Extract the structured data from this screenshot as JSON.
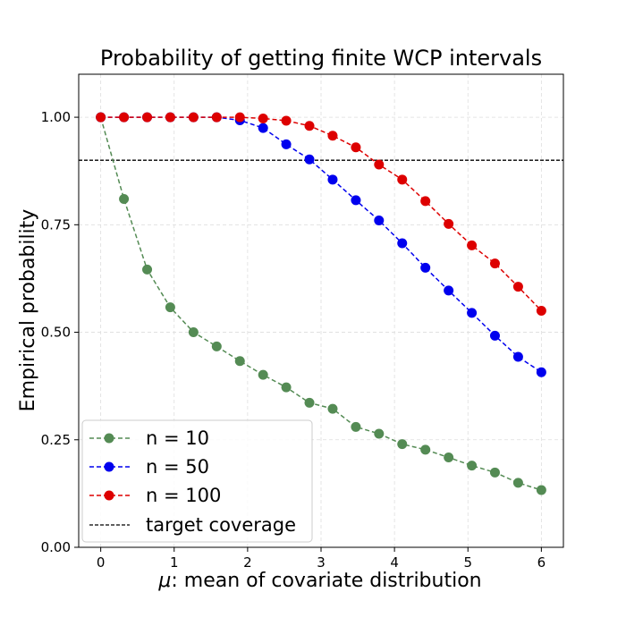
{
  "chart_data": {
    "type": "line",
    "title": "Probability of getting finite WCP intervals",
    "xlabel_symbol": "μ",
    "xlabel_rest": ": mean of covariate distribution",
    "ylabel": "Empirical probability",
    "xlim": [
      -0.3,
      6.3
    ],
    "ylim": [
      0.0,
      1.1
    ],
    "xticks": [
      0,
      1,
      2,
      3,
      4,
      5,
      6
    ],
    "xtick_labels": [
      "0",
      "1",
      "2",
      "3",
      "4",
      "5",
      "6"
    ],
    "yticks": [
      0.0,
      0.25,
      0.5,
      0.75,
      1.0
    ],
    "ytick_labels": [
      "0.00",
      "0.25",
      "0.50",
      "0.75",
      "1.00"
    ],
    "grid": true,
    "legend_position": "lower-left",
    "x": [
      0,
      0.316,
      0.632,
      0.947,
      1.263,
      1.579,
      1.895,
      2.211,
      2.526,
      2.842,
      3.158,
      3.474,
      3.789,
      4.105,
      4.421,
      4.737,
      5.053,
      5.368,
      5.684,
      6.0
    ],
    "series": [
      {
        "name": "n = 10",
        "color": "#548b54",
        "values": [
          1.0,
          0.81,
          0.646,
          0.558,
          0.5,
          0.467,
          0.433,
          0.401,
          0.372,
          0.336,
          0.322,
          0.28,
          0.264,
          0.24,
          0.227,
          0.209,
          0.19,
          0.174,
          0.15,
          0.133
        ]
      },
      {
        "name": "n = 50",
        "color": "#0000ee",
        "values": [
          1.0,
          1.0,
          1.0,
          1.0,
          1.0,
          1.0,
          0.993,
          0.975,
          0.937,
          0.902,
          0.855,
          0.807,
          0.76,
          0.707,
          0.65,
          0.597,
          0.545,
          0.492,
          0.443,
          0.407
        ]
      },
      {
        "name": "n = 100",
        "color": "#dd0000",
        "values": [
          1.0,
          1.0,
          1.0,
          1.0,
          1.0,
          1.0,
          1.0,
          0.997,
          0.992,
          0.98,
          0.957,
          0.93,
          0.89,
          0.855,
          0.805,
          0.752,
          0.702,
          0.66,
          0.606,
          0.55
        ]
      }
    ],
    "reference_line": {
      "name": "target coverage",
      "y": 0.9,
      "color": "#000000"
    }
  }
}
